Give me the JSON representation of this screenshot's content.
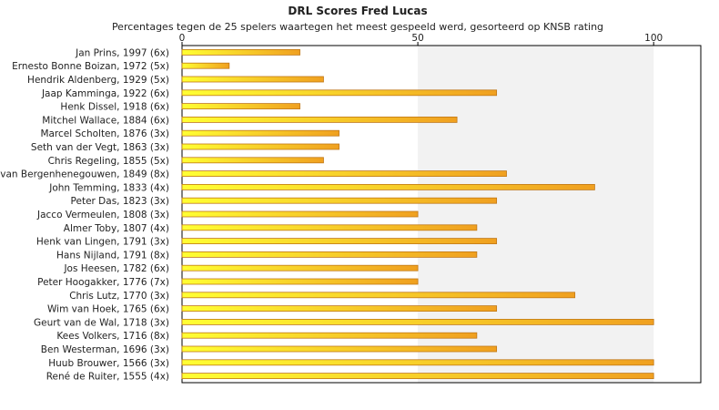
{
  "chart_data": {
    "type": "bar",
    "orientation": "horizontal",
    "title": "DRL Scores Fred Lucas",
    "subtitle": "Percentages tegen de 25 spelers waartegen het meest gespeeld werd, gesorteerd op KNSB rating",
    "xlim": [
      0,
      110
    ],
    "x_ticks": [
      0,
      50,
      100
    ],
    "x_tick_position": "top",
    "grid": false,
    "categories": [
      "Jan Prins, 1997 (6x)",
      "Ernesto Bonne Boizan, 1972 (5x)",
      "Hendrik Aldenberg, 1929 (5x)",
      "Jaap Kamminga, 1922 (6x)",
      "Henk Dissel, 1918 (6x)",
      "Mitchel Wallace, 1884 (6x)",
      "Marcel Scholten, 1876 (3x)",
      "Seth van der Vegt, 1863 (3x)",
      "Chris Regeling, 1855 (5x)",
      "van Bergenhenegouwen, 1849 (8x)",
      "John Temming, 1833 (4x)",
      "Peter Das, 1823 (3x)",
      "Jacco Vermeulen, 1808 (3x)",
      "Almer Toby, 1807 (4x)",
      "Henk van Lingen, 1791 (3x)",
      "Hans Nijland, 1791 (8x)",
      "Jos Heesen, 1782 (6x)",
      "Peter Hoogakker, 1776 (7x)",
      "Chris Lutz, 1770 (3x)",
      "Wim van Hoek, 1765 (6x)",
      "Geurt van de Wal, 1718 (3x)",
      "Kees Volkers, 1716 (8x)",
      "Ben Westerman, 1696 (3x)",
      "Huub Brouwer, 1566 (3x)",
      "René de Ruiter, 1555 (4x)"
    ],
    "values": [
      25,
      10,
      30,
      66.7,
      25,
      58.3,
      33.3,
      33.3,
      30,
      68.8,
      87.5,
      66.7,
      50,
      62.5,
      66.7,
      62.5,
      50,
      50,
      83.3,
      66.7,
      100,
      62.5,
      66.7,
      100,
      100
    ],
    "colors": {
      "bar_start": "#ffff33",
      "bar_end": "#f0a020",
      "bar_stroke": "#c07818",
      "band_shade": "#f2f2f2",
      "axis": "#000000"
    }
  }
}
